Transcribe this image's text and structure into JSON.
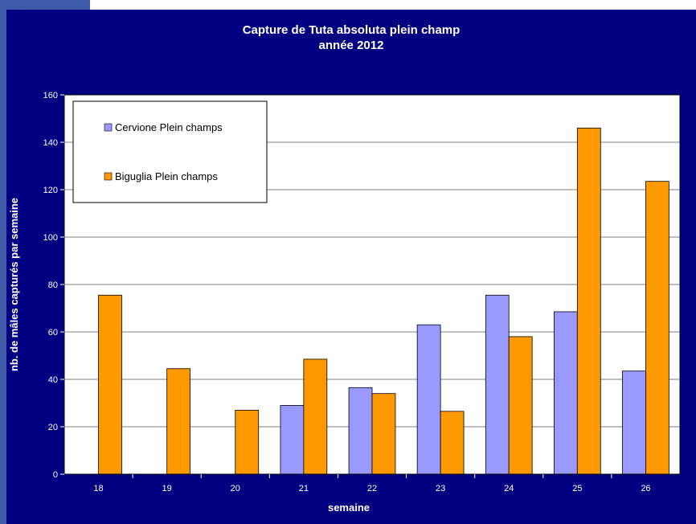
{
  "chart_data": {
    "type": "bar",
    "title": "Capture de Tuta absoluta plein champ",
    "subtitle": "année 2012",
    "xlabel": "semaine",
    "ylabel": "nb. de mâles capturés par semaine",
    "categories": [
      "18",
      "19",
      "20",
      "21",
      "22",
      "23",
      "24",
      "25",
      "26"
    ],
    "series": [
      {
        "name": "Cervione Plein champs",
        "color": "#9999ff",
        "values": [
          null,
          null,
          null,
          29,
          36.5,
          63,
          75.5,
          68.5,
          43.5
        ]
      },
      {
        "name": "Biguglia Plein champs",
        "color": "#ff9900",
        "values": [
          75.5,
          44.5,
          27,
          48.5,
          34,
          26.5,
          58,
          146,
          123.5
        ]
      }
    ],
    "ylim": [
      0,
      160
    ],
    "yticks": [
      0,
      20,
      40,
      60,
      80,
      100,
      120,
      140,
      160
    ],
    "grid": true,
    "legend_position": "top-left",
    "colors": {
      "background": "#000080",
      "plot_area": "#ffffff",
      "gridline": "#000000",
      "text": "#ffffff",
      "frame_accent": "#3d5aa8"
    }
  }
}
